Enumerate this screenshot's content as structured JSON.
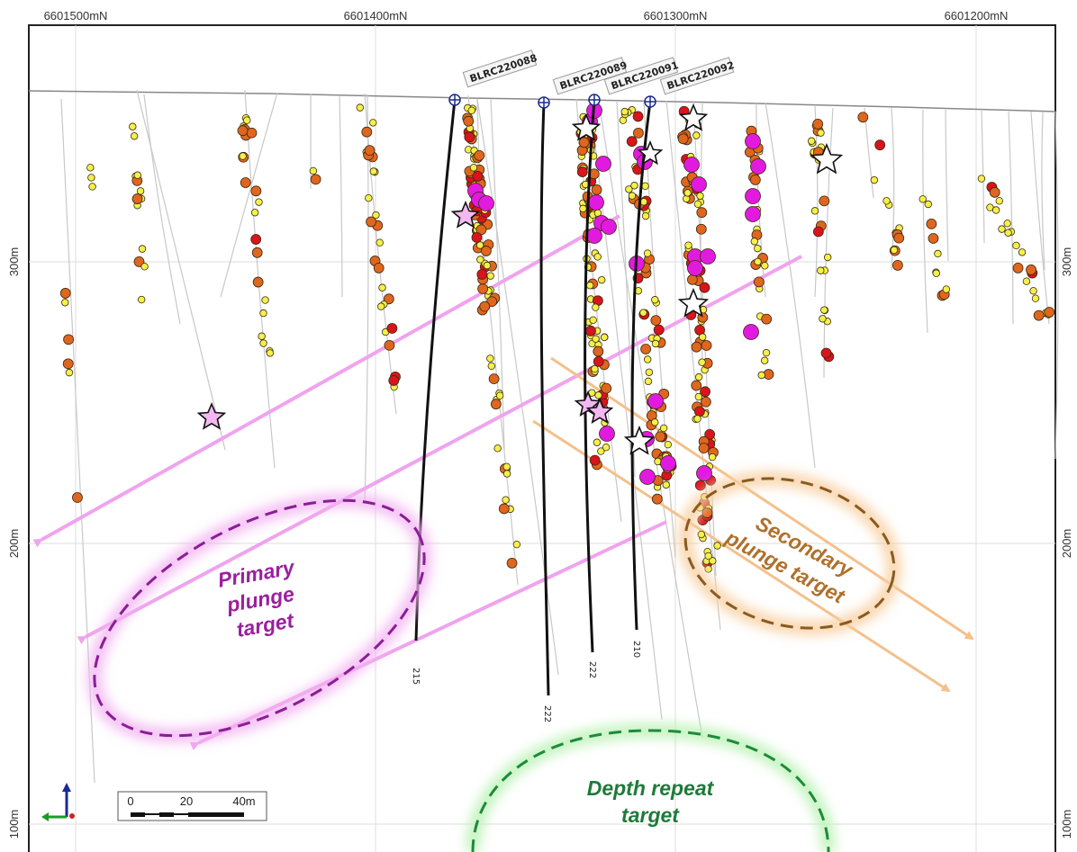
{
  "axes": {
    "northings": [
      "6601500mN",
      "6601400mN",
      "6601300mN",
      "6601200mN"
    ],
    "elevations": [
      "300m",
      "200m",
      "100m"
    ]
  },
  "drillholes": [
    {
      "name": "BLRC220088",
      "depth_label": "215"
    },
    {
      "name": "BLRC220089",
      "depth_label": "222"
    },
    {
      "name": "BLRC220091",
      "depth_label": "222"
    },
    {
      "name": "BLRC220092",
      "depth_label": "210"
    }
  ],
  "targets": {
    "primary": {
      "line1": "Primary",
      "line2": "plunge",
      "line3": "target",
      "color": "#9b1fa0"
    },
    "secondary": {
      "line1": "Secondary",
      "line2": "plunge target",
      "color": "#b0702a"
    },
    "depth": {
      "line1": "Depth repeat",
      "line2": "target",
      "color": "#1e7a3a"
    }
  },
  "scale_bar": {
    "labels": [
      "0",
      "20",
      "40m"
    ]
  },
  "colors": {
    "primary_arrow": "#f0a3ee",
    "secondary_arrow": "#f5c08a",
    "assay_low": "#f4f04a",
    "assay_mid": "#e0661f",
    "assay_high": "#d9141c",
    "assay_very_high": "#e21ae0"
  }
}
